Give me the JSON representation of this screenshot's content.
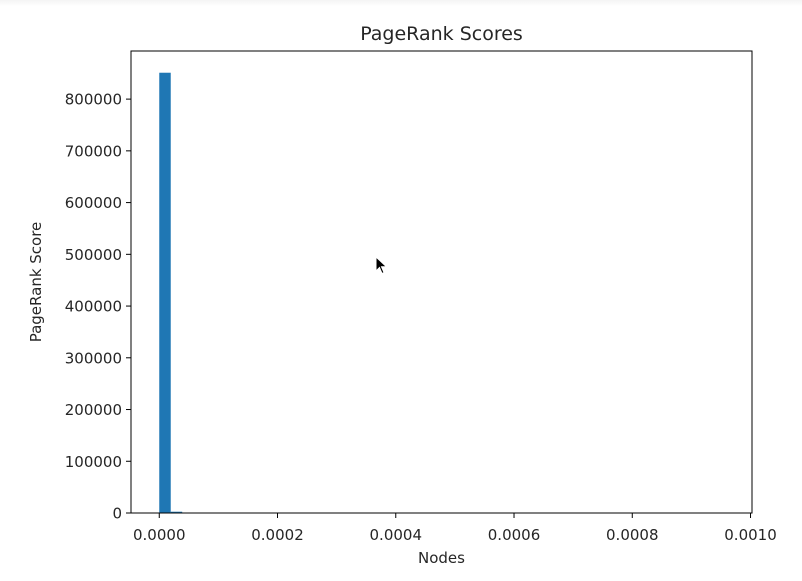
{
  "chart_data": {
    "type": "bar",
    "title": "PageRank Scores",
    "xlabel": "Nodes",
    "ylabel": "PageRank Score",
    "xlim": [
      -4.78e-05,
      0.0010025
    ],
    "ylim": [
      0,
      893000
    ],
    "x_ticks": [
      0.0,
      0.0002,
      0.0004,
      0.0006,
      0.0008,
      0.001
    ],
    "x_tick_labels": [
      "0.0000",
      "0.0002",
      "0.0004",
      "0.0006",
      "0.0008",
      "0.0010"
    ],
    "y_ticks": [
      0,
      100000,
      200000,
      300000,
      400000,
      500000,
      600000,
      700000,
      800000
    ],
    "y_tick_labels": [
      "0",
      "100000",
      "200000",
      "300000",
      "400000",
      "500000",
      "600000",
      "700000",
      "800000"
    ],
    "bin_width": 1.94e-05,
    "bins": [
      {
        "x": 0.0,
        "value": 851000
      },
      {
        "x": 1.94e-05,
        "value": 2500
      },
      {
        "x": 3.88e-05,
        "value": 800
      }
    ],
    "grid": false,
    "bar_color": "#1f77b4"
  },
  "ui": {
    "cursor_icon": "arrow-pointer-icon"
  }
}
